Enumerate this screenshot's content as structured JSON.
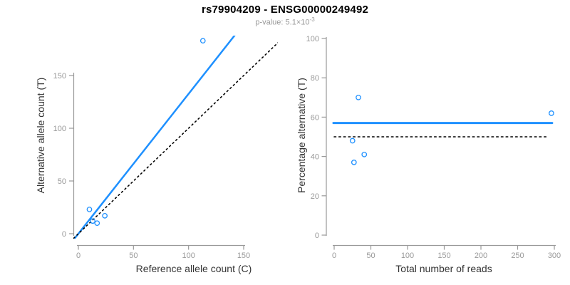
{
  "header": {
    "title": "rs79904209 - ENSG00000249492",
    "p_value": {
      "prefix": "p-value: ",
      "mantissa": "5.1",
      "times": "×",
      "base": "10",
      "exponent": "-3"
    }
  },
  "colors": {
    "accent_blue": "#1E90FF",
    "axis_gray": "#999999",
    "axis_title_color": "#333333",
    "dotted_black": "#000000",
    "background": "#ffffff"
  },
  "chart_data": [
    {
      "type": "scatter",
      "panel": "left",
      "title": "",
      "xlabel": "Reference allele count (C)",
      "ylabel": "Alternative allele count (T)",
      "xlim": [
        0,
        150
      ],
      "ylim": [
        0,
        150
      ],
      "xticks": [
        0,
        50,
        100,
        150
      ],
      "yticks": [
        0,
        50,
        100,
        150
      ],
      "grid": false,
      "legend": "none",
      "marker": {
        "shape": "open-circle",
        "color": "#1E90FF",
        "radius": 3.2
      },
      "points": [
        [
          10,
          23
        ],
        [
          13,
          12
        ],
        [
          17,
          10
        ],
        [
          24,
          17
        ],
        [
          113,
          183
        ]
      ],
      "lines": [
        {
          "id": "fit-line",
          "type": "abline",
          "intercept": 0,
          "slope": 1.326,
          "x_range": [
            -10,
            220
          ],
          "color": "#1E90FF",
          "width": 2.5,
          "dash": ""
        },
        {
          "id": "identity-line",
          "type": "abline",
          "intercept": 0,
          "slope": 1,
          "x_range": [
            -10,
            220
          ],
          "color": "#000000",
          "width": 1.6,
          "dash": "2 4.2"
        }
      ]
    },
    {
      "type": "scatter",
      "panel": "right",
      "title": "",
      "xlabel": "Total number of reads",
      "ylabel": "Percentage alternative (T)",
      "xlim": [
        0,
        300
      ],
      "ylim": [
        0,
        100
      ],
      "xticks": [
        0,
        50,
        100,
        150,
        200,
        250,
        300
      ],
      "yticks": [
        0,
        20,
        40,
        60,
        80,
        100
      ],
      "grid": false,
      "legend": "none",
      "marker": {
        "shape": "open-circle",
        "color": "#1E90FF",
        "radius": 3.2
      },
      "points": [
        [
          33,
          70
        ],
        [
          25,
          48
        ],
        [
          27,
          37
        ],
        [
          41,
          41
        ],
        [
          296,
          62
        ]
      ],
      "lines": [
        {
          "id": "mean-line",
          "type": "hline",
          "y": 57,
          "x_range": [
            -1,
            297
          ],
          "color": "#1E90FF",
          "width": 3,
          "dash": ""
        },
        {
          "id": "null-line",
          "type": "hline",
          "y": 50,
          "x_range": [
            0,
            291
          ],
          "color": "#000000",
          "width": 1.6,
          "dash": "2.5 4.2"
        }
      ]
    }
  ]
}
